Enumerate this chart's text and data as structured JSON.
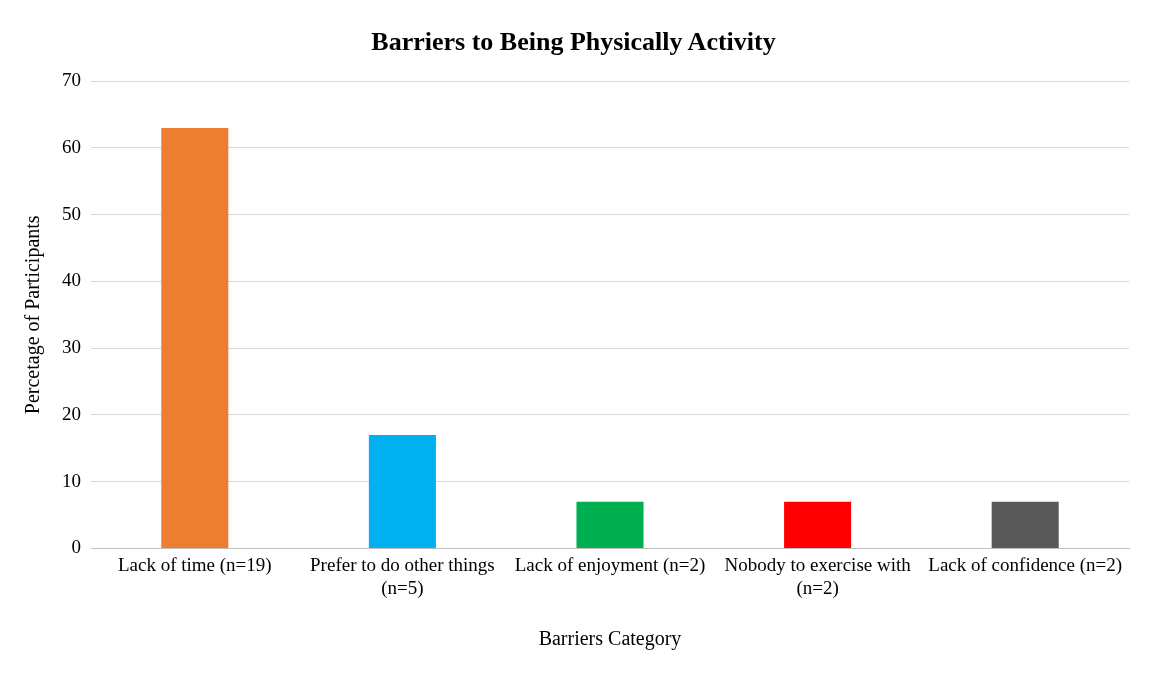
{
  "chart_data": {
    "type": "bar",
    "title": "Barriers to Being Physically Activity",
    "xlabel": "Barriers Category",
    "ylabel": "Percetage of Participants",
    "categories": [
      "Lack of time (n=19)",
      "Prefer to do other things (n=5)",
      "Lack of enjoyment (n=2)",
      "Nobody to exercise with (n=2)",
      "Lack of confidence (n=2)"
    ],
    "values": [
      63,
      17,
      7,
      7,
      7
    ],
    "colors": [
      "#ed7d31",
      "#00b0f0",
      "#00b050",
      "#ff0000",
      "#595959"
    ],
    "ylim": [
      0,
      70
    ],
    "yticks": [
      0,
      10,
      20,
      30,
      40,
      50,
      60,
      70
    ],
    "grid": "y"
  }
}
